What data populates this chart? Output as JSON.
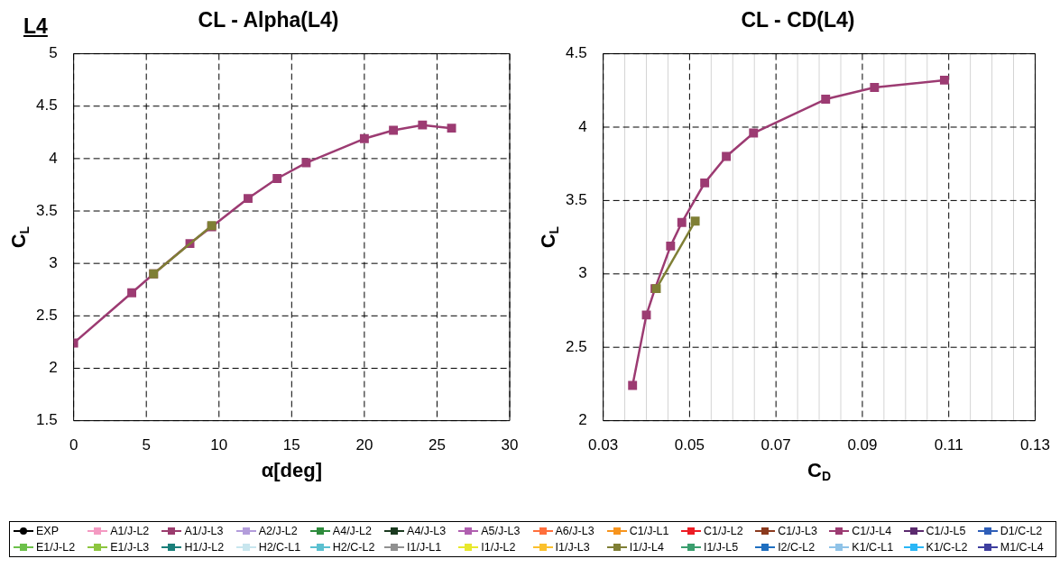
{
  "chart_data": [
    {
      "type": "line",
      "title": "CL - Alpha(L4)",
      "xlabel": "α[deg]",
      "ylabel": "C$_{L}$",
      "annotations": [
        "L4"
      ],
      "xlim": [
        0,
        30
      ],
      "ylim": [
        1.5,
        5
      ],
      "xticks": [
        0,
        5,
        10,
        15,
        20,
        25,
        30
      ],
      "yticks": [
        1.5,
        2,
        2.5,
        3,
        3.5,
        4,
        4.5,
        5
      ],
      "grid": true,
      "legend": "bottom",
      "marker": "square",
      "line_style": "solid",
      "series": [
        {
          "name": "EXP",
          "color": "#000000",
          "marker": "circle"
        },
        {
          "name": "A1/J-L2",
          "color": "#f49ac2"
        },
        {
          "name": "A1/J-L3",
          "color": "#9b3c6e"
        },
        {
          "name": "A2/J-L2",
          "color": "#b39ddb"
        },
        {
          "name": "A4/J-L2",
          "color": "#2e8b3c"
        },
        {
          "name": "A4/J-L3",
          "color": "#1b3a20"
        },
        {
          "name": "A5/J-L3",
          "color": "#b05fb0"
        },
        {
          "name": "A6/J-L3",
          "color": "#ff6f3c"
        },
        {
          "name": "C1/J-L1",
          "color": "#f7941d"
        },
        {
          "name": "C1/J-L2",
          "color": "#ed1c24"
        },
        {
          "name": "C1/J-L3",
          "color": "#8b3a1e"
        },
        {
          "name": "C1/J-L4",
          "color": "#9c3b72",
          "x": [
            0,
            4,
            5.5,
            8,
            9.5,
            12,
            14,
            16,
            20,
            22,
            24,
            26
          ],
          "values": [
            2.24,
            2.72,
            2.9,
            3.19,
            3.35,
            3.62,
            3.81,
            3.96,
            4.19,
            4.27,
            4.32,
            4.29
          ]
        },
        {
          "name": "C1/J-L5",
          "color": "#5b2a6e"
        },
        {
          "name": "D1/C-L2",
          "color": "#2e5eb8"
        },
        {
          "name": "E1/J-L2",
          "color": "#6cc04a"
        },
        {
          "name": "E1/J-L3",
          "color": "#8dc63f"
        },
        {
          "name": "H1/J-L2",
          "color": "#1a7f7a"
        },
        {
          "name": "H2/C-L1",
          "color": "#c8e6ee"
        },
        {
          "name": "H2/C-L2",
          "color": "#5bc0d0"
        },
        {
          "name": "I1/J-L1",
          "color": "#909090"
        },
        {
          "name": "I1/J-L2",
          "color": "#e8e82c"
        },
        {
          "name": "I1/J-L3",
          "color": "#fbc02d"
        },
        {
          "name": "I1/J-L4",
          "color": "#7f7f35",
          "x": [
            5.5,
            9.5
          ],
          "values": [
            2.9,
            3.36
          ]
        },
        {
          "name": "I1/J-L5",
          "color": "#3a9e6e"
        },
        {
          "name": "I2/C-L2",
          "color": "#1f6fc0"
        },
        {
          "name": "K1/C-L1",
          "color": "#8fc3e8"
        },
        {
          "name": "K1/C-L2",
          "color": "#29b6f6"
        },
        {
          "name": "M1/C-L4",
          "color": "#3f3f9f"
        }
      ]
    },
    {
      "type": "line",
      "title": "CL - CD(L4)",
      "xlabel": "C$_{D}$",
      "ylabel": "C$_{L}$",
      "xlim": [
        0.03,
        0.13
      ],
      "ylim": [
        2,
        4.5
      ],
      "xticks": [
        0.03,
        {
          "value": 0.035,
          "label": null
        },
        {
          "value": 0.04,
          "label": null
        },
        {
          "value": 0.045,
          "label": null
        },
        0.05,
        {
          "value": 0.055,
          "label": null
        },
        {
          "value": 0.06,
          "label": null
        },
        {
          "value": 0.065,
          "label": null
        },
        0.07,
        {
          "value": 0.075,
          "label": null
        },
        {
          "value": 0.08,
          "label": null
        },
        {
          "value": 0.085,
          "label": null
        },
        0.09,
        {
          "value": 0.095,
          "label": null
        },
        {
          "value": 0.1,
          "label": null
        },
        {
          "value": 0.105,
          "label": null
        },
        0.11,
        {
          "value": 0.115,
          "label": null
        },
        {
          "value": 0.12,
          "label": null
        },
        {
          "value": 0.125,
          "label": null
        },
        0.13
      ],
      "yticks": [
        2,
        2.5,
        3,
        3.5,
        4,
        4.5
      ],
      "grid": true,
      "legend": false,
      "marker": "square",
      "line_style": "solid",
      "series": [
        {
          "color": "#9c3b72",
          "x": [
            0.0368,
            0.04,
            0.042,
            0.0456,
            0.0482,
            0.0535,
            0.0585,
            0.0648,
            0.0815,
            0.0928,
            0.109
          ],
          "values": [
            2.24,
            2.72,
            2.9,
            3.19,
            3.35,
            3.62,
            3.8,
            3.96,
            4.19,
            4.27,
            4.32
          ]
        },
        {
          "color": "#7f7f35",
          "x": [
            0.0423,
            0.0513
          ],
          "values": [
            2.9,
            3.36
          ]
        }
      ]
    }
  ]
}
